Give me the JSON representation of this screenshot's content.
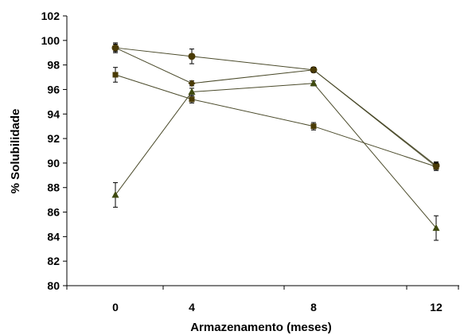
{
  "chart_data": {
    "type": "line",
    "title": "",
    "xlabel": "Armazenamento (meses)",
    "ylabel": "% Solubilidade",
    "x": [
      0,
      4,
      8,
      12
    ],
    "x_tick_labels": [
      "0",
      "4",
      "8",
      "12"
    ],
    "ylim": [
      80,
      102
    ],
    "y_ticks": [
      80,
      82,
      84,
      86,
      88,
      90,
      92,
      94,
      96,
      98,
      100,
      102
    ],
    "grid": false,
    "legend": "none",
    "error_bars": true,
    "series": [
      {
        "marker": "circle",
        "color": "#4a3b06",
        "values": [
          99.4,
          98.7,
          97.6,
          89.8
        ],
        "errors": [
          0.4,
          0.6,
          0.2,
          0.3
        ]
      },
      {
        "marker": "diamond",
        "color": "#4a3b06",
        "values": [
          99.4,
          96.5,
          97.6,
          89.7
        ],
        "errors": [
          0.3,
          0.2,
          0.2,
          0.3
        ]
      },
      {
        "marker": "square",
        "color": "#4a3b06",
        "values": [
          97.2,
          95.2,
          93.0,
          89.7
        ],
        "errors": [
          0.6,
          0.3,
          0.3,
          0.3
        ]
      },
      {
        "marker": "triangle",
        "color": "#3f4a10",
        "values": [
          87.4,
          95.8,
          96.5,
          84.7
        ],
        "errors": [
          1.0,
          0.3,
          0.2,
          1.0
        ]
      }
    ]
  }
}
